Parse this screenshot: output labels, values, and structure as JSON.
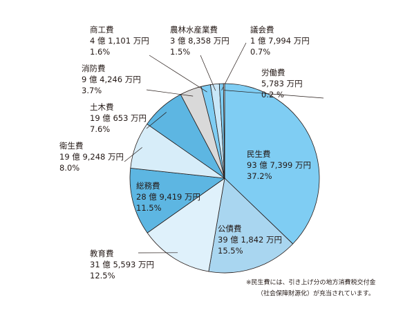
{
  "chart_data": {
    "type": "pie",
    "categories": [
      "民生費",
      "公債費",
      "教育費",
      "総務費",
      "衛生費",
      "土木費",
      "消防費",
      "商工費",
      "農林水産業費",
      "議会費",
      "労働費"
    ],
    "amounts": [
      "93 億 7,399 万円",
      "39 億 1,842 万円",
      "31 億 5,593 万円",
      "28 億 9,419 万円",
      "19 億 9,248 万円",
      "19 億 653 万円",
      "9 億 4,246 万円",
      "4 億 1,101 万円",
      "3 億 8,358 万円",
      "1 億 7,994 万円",
      "5,783 万円"
    ],
    "values": [
      37.2,
      15.5,
      12.5,
      11.5,
      8.0,
      7.6,
      3.7,
      1.6,
      1.5,
      0.7,
      0.2
    ],
    "value_labels": [
      "37.2%",
      "15.5%",
      "12.5%",
      "11.5%",
      "8.0%",
      "7.6%",
      "3.7%",
      "1.6%",
      "1.5%",
      "0.7%",
      "0.2 %"
    ],
    "colors": [
      "#7fcdf3",
      "#a9d6f0",
      "#dff1fb",
      "#5db6e2",
      "#d7edf9",
      "#5db6e2",
      "#d9d9d9",
      "#7fcdf3",
      "#c9e7f8",
      "#7fcdf3",
      "#f4f4f4"
    ],
    "footnote": [
      "※民生費には、引き上げ分の地方消費税交付金",
      "（社会保障財源化）が充当されています。"
    ]
  }
}
